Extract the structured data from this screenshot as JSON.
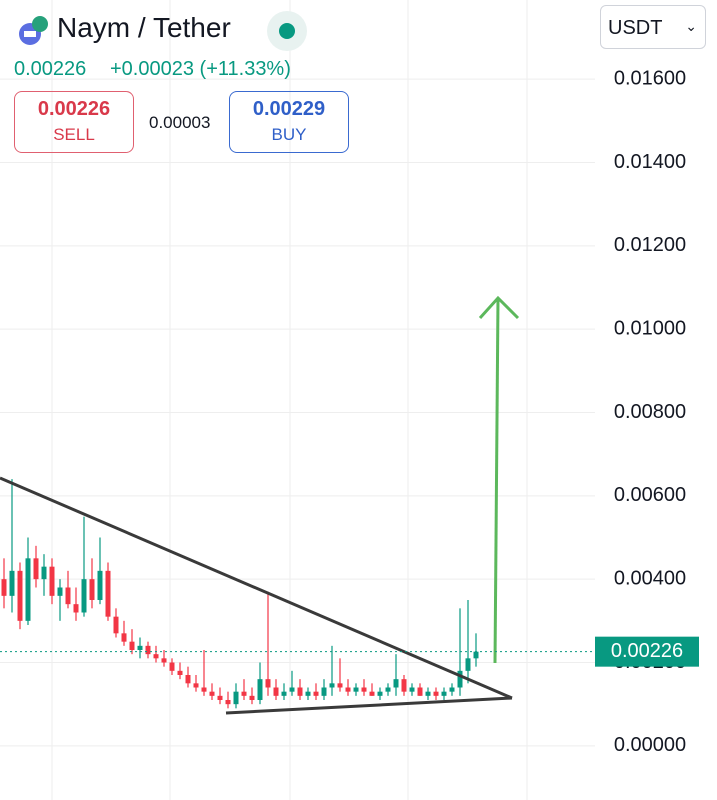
{
  "header": {
    "pair": "Naym / Tether",
    "price": "0.00226",
    "change": "+0.00023 (+11.33%)",
    "sell_price": "0.00226",
    "sell_label": "SELL",
    "spread": "0.00003",
    "buy_price": "0.00229",
    "buy_label": "BUY",
    "currency": "USDT"
  },
  "chart_data": {
    "type": "candlestick",
    "up_color": "#089981",
    "down_color": "#f23645",
    "grid": true,
    "ylim": [
      -0.0013,
      0.0179
    ],
    "yticks": [
      {
        "value": 0,
        "label": "0.00000"
      },
      {
        "value": 0.002,
        "label": "0.00200"
      },
      {
        "value": 0.004,
        "label": "0.00400"
      },
      {
        "value": 0.006,
        "label": "0.00600"
      },
      {
        "value": 0.008,
        "label": "0.00800"
      },
      {
        "value": 0.01,
        "label": "0.01000"
      },
      {
        "value": 0.012,
        "label": "0.01200"
      },
      {
        "value": 0.014,
        "label": "0.01400"
      },
      {
        "value": 0.016,
        "label": "0.01600"
      }
    ],
    "open": [
      0.004,
      0.0036,
      0.0042,
      0.003,
      0.0045,
      0.004,
      0.0043,
      0.0036,
      0.0038,
      0.0034,
      0.0032,
      0.004,
      0.0035,
      0.0042,
      0.0031,
      0.0027,
      0.0025,
      0.0023,
      0.0024,
      0.0022,
      0.0021,
      0.002,
      0.0018,
      0.0017,
      0.0015,
      0.0014,
      0.0013,
      0.0012,
      0.0011,
      0.001,
      0.0013,
      0.0012,
      0.0011,
      0.0016,
      0.0014,
      0.0012,
      0.0013,
      0.0014,
      0.0012,
      0.0013,
      0.0012,
      0.0014,
      0.0015,
      0.0014,
      0.0013,
      0.0014,
      0.0013,
      0.0012,
      0.0013,
      0.0014,
      0.0016,
      0.0013,
      0.0014,
      0.0012,
      0.0013,
      0.0012,
      0.0013,
      0.0014,
      0.0018,
      0.0021
    ],
    "high": [
      0.0045,
      0.0064,
      0.0044,
      0.005,
      0.0048,
      0.0046,
      0.0045,
      0.004,
      0.0042,
      0.0038,
      0.0055,
      0.0045,
      0.005,
      0.0044,
      0.0033,
      0.003,
      0.0028,
      0.0026,
      0.0025,
      0.0024,
      0.0023,
      0.0021,
      0.002,
      0.0019,
      0.0017,
      0.0023,
      0.0015,
      0.0014,
      0.0013,
      0.0015,
      0.0016,
      0.0014,
      0.002,
      0.0037,
      0.0016,
      0.0015,
      0.0018,
      0.0016,
      0.0014,
      0.0015,
      0.0016,
      0.0024,
      0.0021,
      0.0016,
      0.0015,
      0.0016,
      0.0015,
      0.0014,
      0.0015,
      0.0022,
      0.0017,
      0.0015,
      0.0015,
      0.0014,
      0.0014,
      0.0014,
      0.0015,
      0.0033,
      0.0035,
      0.0027
    ],
    "low": [
      0.0033,
      0.0032,
      0.0028,
      0.0029,
      0.0038,
      0.0036,
      0.0034,
      0.003,
      0.0033,
      0.003,
      0.0031,
      0.0033,
      0.0034,
      0.003,
      0.0026,
      0.0024,
      0.0022,
      0.0021,
      0.0021,
      0.002,
      0.0019,
      0.0017,
      0.0016,
      0.0014,
      0.0013,
      0.0012,
      0.0011,
      0.001,
      0.0009,
      0.0009,
      0.0011,
      0.001,
      0.001,
      0.0012,
      0.0011,
      0.0011,
      0.0012,
      0.0011,
      0.0011,
      0.0011,
      0.0011,
      0.0012,
      0.0013,
      0.0012,
      0.0012,
      0.0012,
      0.0012,
      0.0011,
      0.0012,
      0.0012,
      0.0012,
      0.0012,
      0.0012,
      0.0011,
      0.0011,
      0.0011,
      0.0012,
      0.0012,
      0.0015,
      0.0019
    ],
    "close": [
      0.0036,
      0.0042,
      0.003,
      0.0045,
      0.004,
      0.0043,
      0.0036,
      0.0038,
      0.0034,
      0.0032,
      0.004,
      0.0035,
      0.0042,
      0.0031,
      0.0027,
      0.0025,
      0.0023,
      0.0024,
      0.0022,
      0.0021,
      0.002,
      0.0018,
      0.0017,
      0.0015,
      0.0014,
      0.0013,
      0.0012,
      0.0011,
      0.001,
      0.0013,
      0.0012,
      0.0011,
      0.0016,
      0.0014,
      0.0012,
      0.0013,
      0.0014,
      0.0012,
      0.0013,
      0.0012,
      0.0014,
      0.0015,
      0.0014,
      0.0013,
      0.0014,
      0.0013,
      0.0012,
      0.0013,
      0.0014,
      0.0016,
      0.0013,
      0.0014,
      0.0012,
      0.0013,
      0.0012,
      0.0013,
      0.0014,
      0.0018,
      0.0021,
      0.00226
    ]
  }
}
